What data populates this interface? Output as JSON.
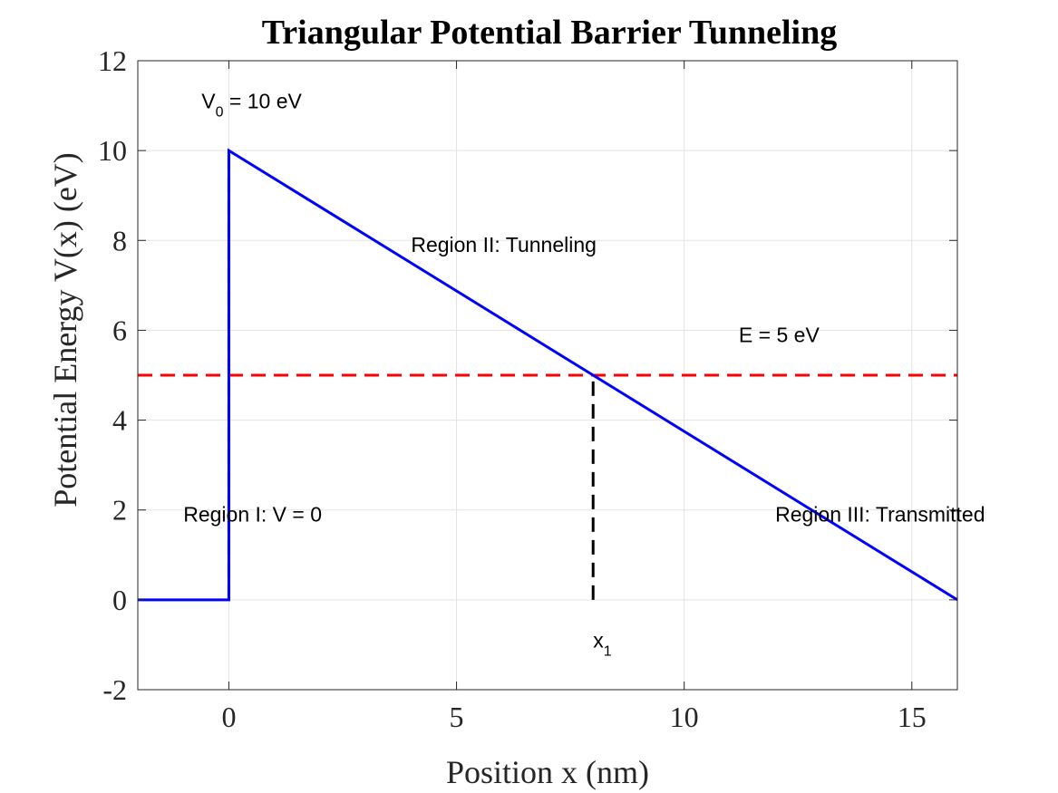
{
  "chart_data": {
    "type": "line",
    "title": "Triangular Potential Barrier Tunneling",
    "xlabel": "Position x (nm)",
    "ylabel": "Potential Energy  V(x) (eV)",
    "xlim": [
      -2,
      16
    ],
    "ylim": [
      -2,
      12
    ],
    "xticks": [
      0,
      5,
      10,
      15
    ],
    "yticks": [
      -2,
      0,
      2,
      4,
      6,
      8,
      10,
      12
    ],
    "grid": true,
    "series": [
      {
        "style": "solid",
        "color": "#0000ff",
        "x": [
          -2,
          0,
          0,
          16
        ],
        "y": [
          0,
          0,
          10,
          0
        ]
      }
    ],
    "reference_lines": [
      {
        "kind": "horizontal",
        "y": 5,
        "color": "#ff0000",
        "style": "dashed"
      },
      {
        "kind": "vertical",
        "x": 0,
        "y_from": 0,
        "y_to": 10,
        "color": "#000000",
        "style": "dashed"
      },
      {
        "kind": "vertical",
        "x": 8,
        "y_from": 0,
        "y_to": 5,
        "color": "#000000",
        "style": "dashed"
      }
    ],
    "annotations": [
      {
        "id": "v0",
        "main": "V",
        "sub": "0",
        "rest": " = 10 eV",
        "x": -0.6,
        "y": 11.1
      },
      {
        "id": "region2",
        "main": "Region II: Tunneling",
        "x": 4,
        "y": 7.9
      },
      {
        "id": "energy",
        "main": "E = 5 eV",
        "x": 11.2,
        "y": 5.9
      },
      {
        "id": "region1",
        "main": "Region I: V = 0",
        "x": -1,
        "y": 1.9
      },
      {
        "id": "region3",
        "main": "Region III: Transmitted",
        "x": 12,
        "y": 1.9
      },
      {
        "id": "x1",
        "main": "x",
        "sub": "1",
        "x": 8,
        "y": -0.9
      }
    ]
  }
}
